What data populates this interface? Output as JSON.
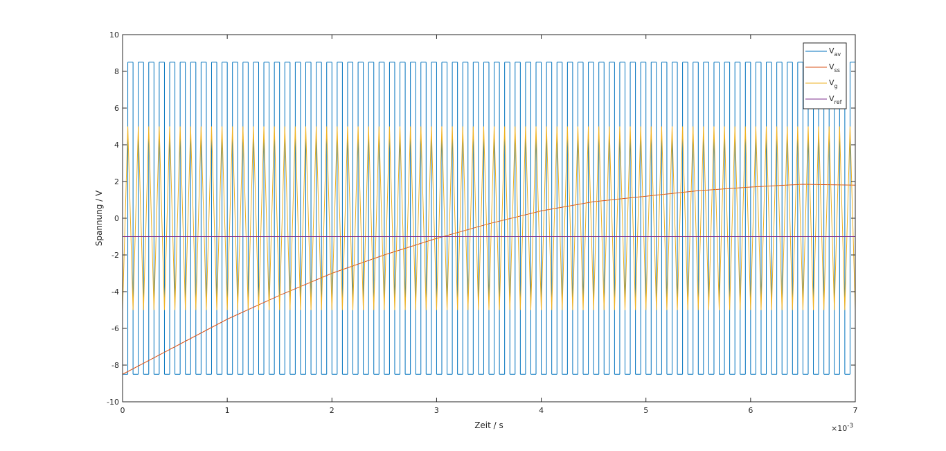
{
  "chart_data": {
    "type": "line",
    "xlabel": "Zeit / s",
    "ylabel": "Spannung / V",
    "x_exponent": {
      "base": "×10",
      "power": "-3"
    },
    "xlim": [
      0,
      7
    ],
    "ylim": [
      -10,
      10
    ],
    "xticks": [
      0,
      1,
      2,
      3,
      4,
      5,
      6,
      7
    ],
    "yticks": [
      -10,
      -8,
      -6,
      -4,
      -2,
      0,
      2,
      4,
      6,
      8,
      10
    ],
    "legend": "top-right",
    "x": [
      0,
      0.05,
      0.1,
      0.15,
      0.2,
      0.25,
      0.3,
      0.35,
      0.4,
      0.45,
      0.5,
      0.55,
      0.6,
      0.65,
      0.7,
      0.75,
      0.8,
      0.85,
      0.9,
      0.95,
      1,
      1.05,
      1.1,
      1.15,
      1.2,
      1.25,
      1.3,
      1.35,
      1.4,
      1.45,
      1.5,
      1.55,
      1.6,
      1.65,
      1.7,
      1.75,
      1.8,
      1.85,
      1.9,
      1.95,
      2,
      2.05,
      2.1,
      2.15,
      2.2,
      2.25,
      2.3,
      2.35,
      2.4,
      2.45,
      2.5,
      2.55,
      2.6,
      2.65,
      2.7,
      2.75,
      2.8,
      2.85,
      2.9,
      2.95,
      3,
      3.05,
      3.1,
      3.15,
      3.2,
      3.25,
      3.3,
      3.35,
      3.4,
      3.45,
      3.5,
      3.55,
      3.6,
      3.65,
      3.7,
      3.75,
      3.8,
      3.85,
      3.9,
      3.95,
      4,
      4.05,
      4.1,
      4.15,
      4.2,
      4.25,
      4.3,
      4.35,
      4.4,
      4.45,
      4.5,
      4.55,
      4.6,
      4.65,
      4.7,
      4.75,
      4.8,
      4.85,
      4.9,
      4.95,
      5,
      5.05,
      5.1,
      5.15,
      5.2,
      5.25,
      5.3,
      5.35,
      5.4,
      5.45,
      5.5,
      5.55,
      5.6,
      5.65,
      5.7,
      5.75,
      5.8,
      5.85,
      5.9,
      5.95,
      6,
      6.05,
      6.1,
      6.15,
      6.2,
      6.25,
      6.3,
      6.35,
      6.4,
      6.45,
      6.5,
      6.55,
      6.6,
      6.65,
      6.7,
      6.75,
      6.8,
      6.85,
      6.9,
      6.95,
      7
    ],
    "series": [
      {
        "name": "V",
        "subscript": "av",
        "color": "#0072bd",
        "step": true,
        "values": [
          -8.5,
          8.5,
          -8.5,
          8.5,
          -8.5,
          8.5,
          -8.5,
          8.5,
          -8.5,
          8.5,
          -8.5,
          8.5,
          -8.5,
          8.5,
          -8.5,
          8.5,
          -8.5,
          8.5,
          -8.5,
          8.5,
          -8.5,
          8.5,
          -8.5,
          8.5,
          -8.5,
          8.5,
          -8.5,
          8.5,
          -8.5,
          8.5,
          -8.5,
          8.5,
          -8.5,
          8.5,
          -8.5,
          8.5,
          -8.5,
          8.5,
          -8.5,
          8.5,
          -8.5,
          8.5,
          -8.5,
          8.5,
          -8.5,
          8.5,
          -8.5,
          8.5,
          -8.5,
          8.5,
          -8.5,
          8.5,
          -8.5,
          8.5,
          -8.5,
          8.5,
          -8.5,
          8.5,
          -8.5,
          8.5,
          -8.5,
          8.5,
          -8.5,
          8.5,
          -8.5,
          8.5,
          -8.5,
          8.5,
          -8.5,
          8.5,
          -8.5,
          8.5,
          -8.5,
          8.5,
          -8.5,
          8.5,
          -8.5,
          8.5,
          -8.5,
          8.5,
          -8.5,
          8.5,
          -8.5,
          8.5,
          -8.5,
          8.5,
          -8.5,
          8.5,
          -8.5,
          8.5,
          -8.5,
          8.5,
          -8.5,
          8.5,
          -8.5,
          8.5,
          -8.5,
          8.5,
          -8.5,
          8.5,
          -8.5,
          8.5,
          -8.5,
          8.5,
          -8.5,
          8.5,
          -8.5,
          8.5,
          -8.5,
          8.5,
          -8.5,
          8.5,
          -8.5,
          8.5,
          -8.5,
          8.5,
          -8.5,
          8.5,
          -8.5,
          8.5,
          -8.5,
          8.5,
          -8.5,
          8.5,
          -8.5,
          8.5,
          -8.5,
          8.5,
          -8.5,
          8.5,
          -8.5,
          8.5,
          -8.5,
          8.5,
          -8.5,
          8.5,
          -8.5,
          8.5,
          -8.5,
          8.5,
          -8.5
        ]
      },
      {
        "name": "V",
        "subscript": "ss",
        "color": "#d95319",
        "x": [
          0,
          0.5,
          1,
          1.5,
          2,
          2.5,
          3,
          3.5,
          4,
          4.5,
          5,
          5.5,
          6,
          6.5,
          7
        ],
        "values": [
          -8.5,
          -7.0,
          -5.5,
          -4.2,
          -3.0,
          -2.0,
          -1.1,
          -0.3,
          0.4,
          0.9,
          1.2,
          1.5,
          1.7,
          1.85,
          1.8
        ]
      },
      {
        "name": "V",
        "subscript": "g",
        "color": "#edb120",
        "values": [
          -5,
          5,
          -5,
          5,
          -5,
          5,
          -5,
          5,
          -5,
          5,
          -5,
          5,
          -5,
          5,
          -5,
          5,
          -5,
          5,
          -5,
          5,
          -5,
          5,
          -5,
          5,
          -5,
          5,
          -5,
          5,
          -5,
          5,
          -5,
          5,
          -5,
          5,
          -5,
          5,
          -5,
          5,
          -5,
          5,
          -5,
          5,
          -5,
          5,
          -5,
          5,
          -5,
          5,
          -5,
          5,
          -5,
          5,
          -5,
          5,
          -5,
          5,
          -5,
          5,
          -5,
          5,
          -5,
          5,
          -5,
          5,
          -5,
          5,
          -5,
          5,
          -5,
          5,
          -5,
          5,
          -5,
          5,
          -5,
          5,
          -5,
          5,
          -5,
          5,
          -5,
          5,
          -5,
          5,
          -5,
          5,
          -5,
          5,
          -5,
          5,
          -5,
          5,
          -5,
          5,
          -5,
          5,
          -5,
          5,
          -5,
          5,
          -5,
          5,
          -5,
          5,
          -5,
          5,
          -5,
          5,
          -5,
          5,
          -5,
          5,
          -5,
          5,
          -5,
          5,
          -5,
          5,
          -5,
          5,
          -5,
          5,
          -5,
          5,
          -5,
          5,
          -5,
          5,
          -5,
          5,
          -5,
          5,
          -5,
          5,
          -5,
          5,
          -5,
          5,
          -5,
          5,
          -5
        ]
      },
      {
        "name": "V",
        "subscript": "ref",
        "color": "#7e2f8e",
        "x": [
          0,
          7
        ],
        "values": [
          -1,
          -1
        ]
      }
    ]
  }
}
